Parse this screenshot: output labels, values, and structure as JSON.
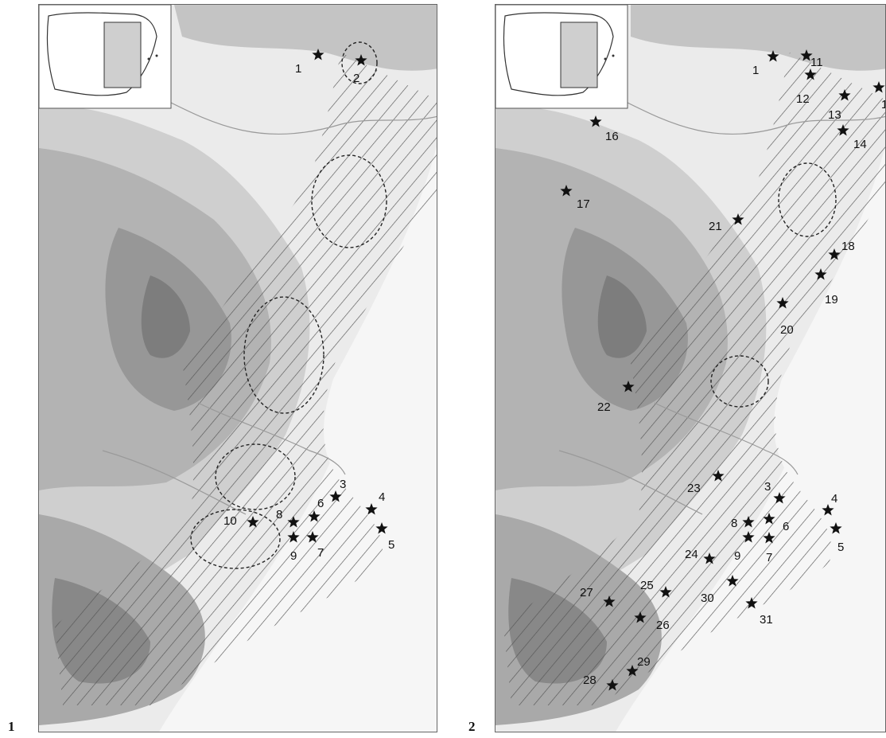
{
  "figure_labels": [
    "1",
    "2"
  ],
  "colors": {
    "lowland": "#ebebeb",
    "hills": "#cfcfcf",
    "mountains": "#b3b3b3",
    "high_mountains": "#979797",
    "peaks": "#7d7d7d",
    "hatch": "#555555",
    "star": "#111111",
    "rivers": "#9a9a9a"
  },
  "panels": [
    {
      "id": "map-1",
      "sites": [
        {
          "label": "1"
        },
        {
          "label": "2"
        },
        {
          "label": "3"
        },
        {
          "label": "4"
        },
        {
          "label": "5"
        },
        {
          "label": "6"
        },
        {
          "label": "7"
        },
        {
          "label": "8"
        },
        {
          "label": "9"
        },
        {
          "label": "10"
        }
      ]
    },
    {
      "id": "map-2",
      "sites": [
        {
          "label": "1"
        },
        {
          "label": "11"
        },
        {
          "label": "12"
        },
        {
          "label": "13"
        },
        {
          "label": "1"
        },
        {
          "label": "14"
        },
        {
          "label": "16"
        },
        {
          "label": "17"
        },
        {
          "label": "21"
        },
        {
          "label": "18"
        },
        {
          "label": "19"
        },
        {
          "label": "20"
        },
        {
          "label": "22"
        },
        {
          "label": "23"
        },
        {
          "label": "3"
        },
        {
          "label": "4"
        },
        {
          "label": "8"
        },
        {
          "label": "6"
        },
        {
          "label": "9"
        },
        {
          "label": "7"
        },
        {
          "label": "5"
        },
        {
          "label": "24"
        },
        {
          "label": "25"
        },
        {
          "label": "30"
        },
        {
          "label": "27"
        },
        {
          "label": "26"
        },
        {
          "label": "31"
        },
        {
          "label": "29"
        },
        {
          "label": "28"
        }
      ]
    }
  ]
}
